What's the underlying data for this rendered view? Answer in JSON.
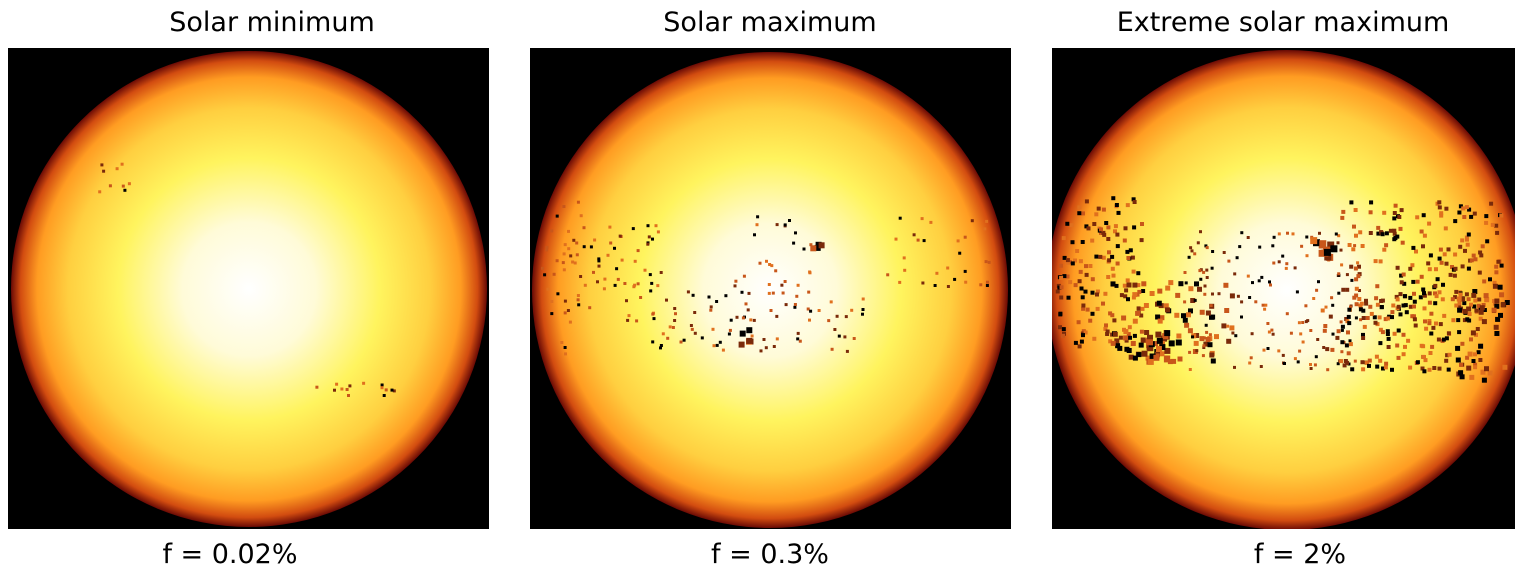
{
  "panels": [
    {
      "title": "Solar minimum",
      "caption": "f = 0.02%"
    },
    {
      "title": "Solar maximum",
      "caption": "f = 0.3%"
    },
    {
      "title": "Extreme solar maximum",
      "caption": "f = 2%"
    }
  ]
}
